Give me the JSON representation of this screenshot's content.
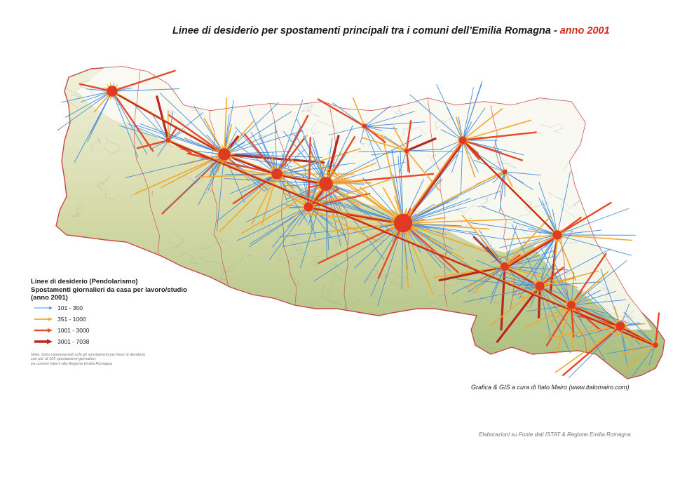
{
  "title": {
    "main": "Linee di desiderio per spostamenti principali tra i comuni dell’Emilia Romagna  -",
    "year": "anno 2001"
  },
  "legend": {
    "title_lines": [
      "Linee di desiderio (Pendolarismo)",
      "Spostamenti giornalieri da casa per lavoro/studio",
      "(anno 2001)"
    ],
    "classes": [
      {
        "label": "101 - 350",
        "color": "#4a8fd8"
      },
      {
        "label": "351 - 1000",
        "color": "#f0a830"
      },
      {
        "label": "1001 - 3000",
        "color": "#e5482a"
      },
      {
        "label": "3001 - 7038",
        "color": "#b8281e"
      }
    ],
    "note_lines": [
      "Nota: Sono rappresentati solo gli spostamenti per linee di desiderio",
      "con piu' di 100 spostamenti giornalieri,",
      "tra comuni interni alla Regione Emilia Romagna"
    ]
  },
  "credit": "Grafica & GIS a cura di Italo Mairo (www.italomairo.com)",
  "source": "Elaborazioni su Fonte dati ISTAT & Regione Emilia Romagna",
  "colors": {
    "terrain_low": "#eaeccd",
    "terrain_high": "#a9bf7e",
    "plain": "#ffffff",
    "border": "#c9474a"
  }
}
